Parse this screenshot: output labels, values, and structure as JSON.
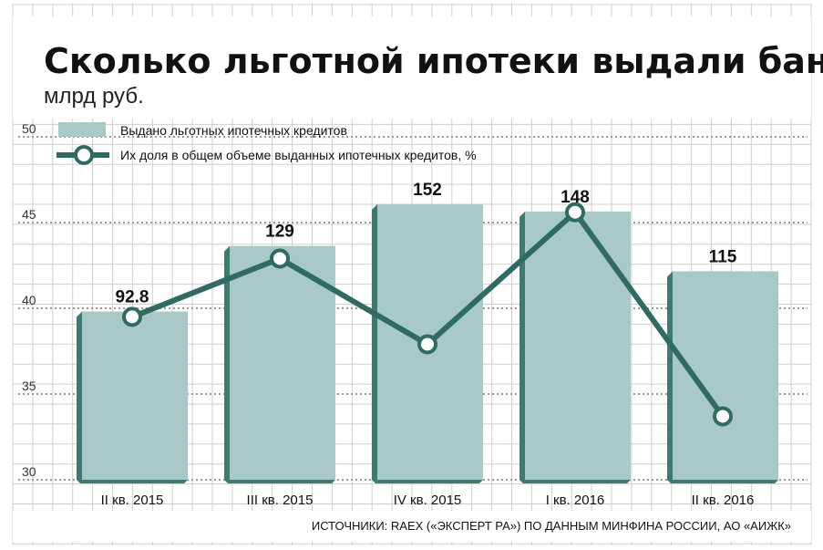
{
  "title": "Сколько льготной ипотеки выдали банки",
  "subtitle": "млрд руб.",
  "legend": {
    "bars": "Выдано льготных ипотечных кредитов",
    "line": "Их доля в общем объеме выданных ипотечных кредитов, %"
  },
  "source": "ИСТОЧНИКИ: RAEX («ЭКСПЕРТ РА») ПО ДАННЫМ МИНФИНА РОССИИ, АО «АИЖК»",
  "colors": {
    "bar": "#a9c9c6",
    "bar_side": "#3e7a72",
    "line": "#2f6b63",
    "grid": "#cfcfcf",
    "dotted": "#999999"
  },
  "chart_data": {
    "type": "bar",
    "categories": [
      "II кв. 2015",
      "III кв. 2015",
      "IV кв. 2015",
      "I кв. 2016",
      "II кв. 2016"
    ],
    "series": [
      {
        "name": "Выдано льготных ипотечных кредитов",
        "type": "bar",
        "values": [
          92.8,
          129,
          152,
          148,
          115
        ],
        "labels": [
          "92.8",
          "129",
          "152",
          "148",
          "115"
        ]
      },
      {
        "name": "Их доля в общем объеме выданных ипотечных кредитов, %",
        "type": "line",
        "values": [
          39.5,
          42.9,
          37.9,
          45.6,
          33.7
        ]
      }
    ],
    "y_ticks": [
      "50",
      "45",
      "40",
      "35",
      "30"
    ],
    "ylim": [
      30,
      50
    ],
    "grid": true,
    "legend_position": "top-left"
  }
}
